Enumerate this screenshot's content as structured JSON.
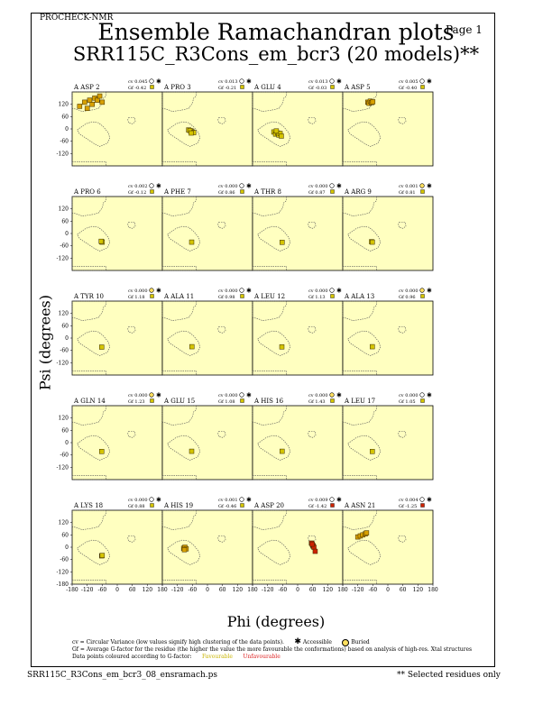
{
  "header": {
    "program": "PROCHECK-NMR",
    "page": "Page  1",
    "title": "Ensemble Ramachandran plots",
    "subtitle": "SRR115C_R3Cons_em_bcr3 (20 models)**"
  },
  "colors": {
    "panel_bg": "#ffffc0",
    "region_outline": "#555555",
    "favourable": "#d4c400",
    "unfavourable": "#cc2200"
  },
  "legend": {
    "line1": "cv = Circular Variance (low values signify high clustering of the data points).",
    "accessible": "Accessible",
    "buried": "Buried",
    "line2": "Gf = Average G-factor for the residue (the higher the value the more favourable the conformations) based on analysis of high-res. Xtal structures",
    "line3": "Data points coloured according to G-factor:",
    "favourable": "Favourable",
    "unfavourable": "Unfavourable"
  },
  "footer": {
    "file": "SRR115C_R3Cons_em_bcr3_08_ensramach.ps",
    "note": "** Selected residues only"
  },
  "chart_data": {
    "type": "scatter",
    "xlabel": "Phi (degrees)",
    "ylabel": "Psi (degrees)",
    "xlim": [
      -180,
      180
    ],
    "ylim": [
      -180,
      180
    ],
    "x_ticks": [
      -180,
      -120,
      -60,
      0,
      60,
      120,
      180
    ],
    "y_ticks": [
      120,
      60,
      0,
      -60,
      -120,
      -180
    ],
    "grid": false,
    "rows": 5,
    "cols": 4,
    "panels": [
      {
        "label": "A ASP 2",
        "cv": "cv 0.045",
        "gf": "Gf -0.42",
        "buried": false,
        "points": [
          [
            -150,
            110
          ],
          [
            -130,
            130
          ],
          [
            -120,
            100
          ],
          [
            -100,
            120
          ],
          [
            -90,
            150
          ],
          [
            -80,
            140
          ],
          [
            -70,
            160
          ],
          [
            -60,
            130
          ],
          [
            -110,
            140
          ]
        ]
      },
      {
        "label": "A PRO 3",
        "cv": "cv 0.013",
        "gf": "Gf -0.21",
        "buried": false,
        "points": [
          [
            -75,
            -5
          ],
          [
            -65,
            -10
          ],
          [
            -60,
            -15
          ],
          [
            -70,
            -8
          ],
          [
            -55,
            -18
          ],
          [
            -65,
            -20
          ]
        ]
      },
      {
        "label": "A GLU 4",
        "cv": "cv 0.013",
        "gf": "Gf -0.03",
        "buried": false,
        "points": [
          [
            -95,
            -15
          ],
          [
            -88,
            -25
          ],
          [
            -80,
            -20
          ],
          [
            -75,
            -30
          ],
          [
            -70,
            -22
          ],
          [
            -65,
            -35
          ],
          [
            -85,
            -10
          ]
        ]
      },
      {
        "label": "A ASP 5",
        "cv": "cv 0.005",
        "gf": "Gf -0.40",
        "buried": false,
        "points": [
          [
            -80,
            130
          ],
          [
            -75,
            125
          ],
          [
            -70,
            135
          ],
          [
            -65,
            128
          ],
          [
            -60,
            132
          ]
        ]
      },
      {
        "label": "A PRO 6",
        "cv": "cv 0.002",
        "gf": "Gf -0.12",
        "buried": false,
        "points": [
          [
            -62,
            -40
          ],
          [
            -60,
            -42
          ],
          [
            -64,
            -38
          ]
        ]
      },
      {
        "label": "A PHE 7",
        "cv": "cv 0.000",
        "gf": "Gf 0.86",
        "buried": false,
        "points": [
          [
            -63,
            -42
          ]
        ]
      },
      {
        "label": "A THR 8",
        "cv": "cv 0.000",
        "gf": "Gf 0.87",
        "buried": false,
        "points": [
          [
            -62,
            -43
          ]
        ]
      },
      {
        "label": "A ARG 9",
        "cv": "cv 0.001",
        "gf": "Gf 0.81",
        "buried": true,
        "points": [
          [
            -65,
            -40
          ],
          [
            -62,
            -42
          ]
        ]
      },
      {
        "label": "A TYR 10",
        "cv": "cv 0.000",
        "gf": "Gf 1.18",
        "buried": true,
        "points": [
          [
            -62,
            -44
          ]
        ]
      },
      {
        "label": "A ALA 11",
        "cv": "cv 0.000",
        "gf": "Gf 0.98",
        "buried": false,
        "points": [
          [
            -62,
            -42
          ]
        ]
      },
      {
        "label": "A LEU 12",
        "cv": "cv 0.000",
        "gf": "Gf 1.13",
        "buried": false,
        "points": [
          [
            -63,
            -43
          ]
        ]
      },
      {
        "label": "A ALA 13",
        "cv": "cv 0.000",
        "gf": "Gf 0.96",
        "buried": true,
        "points": [
          [
            -62,
            -42
          ]
        ]
      },
      {
        "label": "A GLN 14",
        "cv": "cv 0.000",
        "gf": "Gf 1.23",
        "buried": true,
        "points": [
          [
            -62,
            -43
          ]
        ]
      },
      {
        "label": "A GLU 15",
        "cv": "cv 0.000",
        "gf": "Gf 1.08",
        "buried": false,
        "points": [
          [
            -63,
            -42
          ]
        ]
      },
      {
        "label": "A HIS 16",
        "cv": "cv 0.000",
        "gf": "Gf 1.43",
        "buried": true,
        "points": [
          [
            -62,
            -42
          ]
        ]
      },
      {
        "label": "A LEU 17",
        "cv": "cv 0.000",
        "gf": "Gf 1.05",
        "buried": false,
        "points": [
          [
            -62,
            -43
          ]
        ]
      },
      {
        "label": "A LYS 18",
        "cv": "cv 0.000",
        "gf": "Gf 0.88",
        "buried": false,
        "points": [
          [
            -62,
            -42
          ],
          [
            -60,
            -40
          ]
        ]
      },
      {
        "label": "A HIS 19",
        "cv": "cv 0.001",
        "gf": "Gf -0.46",
        "buried": false,
        "points": [
          [
            -95,
            -5
          ],
          [
            -90,
            0
          ],
          [
            -85,
            -8
          ],
          [
            -92,
            -12
          ]
        ]
      },
      {
        "label": "A ASP 20",
        "cv": "cv 0.009",
        "gf": "Gf -1.42",
        "buried": false,
        "points": [
          [
            55,
            20
          ],
          [
            60,
            10
          ],
          [
            62,
            5
          ],
          [
            65,
            0
          ],
          [
            70,
            -20
          ],
          [
            58,
            15
          ]
        ]
      },
      {
        "label": "A ASN 21",
        "cv": "cv 0.004",
        "gf": "Gf -1.25",
        "buried": false,
        "points": [
          [
            -120,
            50
          ],
          [
            -110,
            55
          ],
          [
            -100,
            60
          ],
          [
            -90,
            65
          ],
          [
            -85,
            70
          ]
        ]
      }
    ]
  }
}
